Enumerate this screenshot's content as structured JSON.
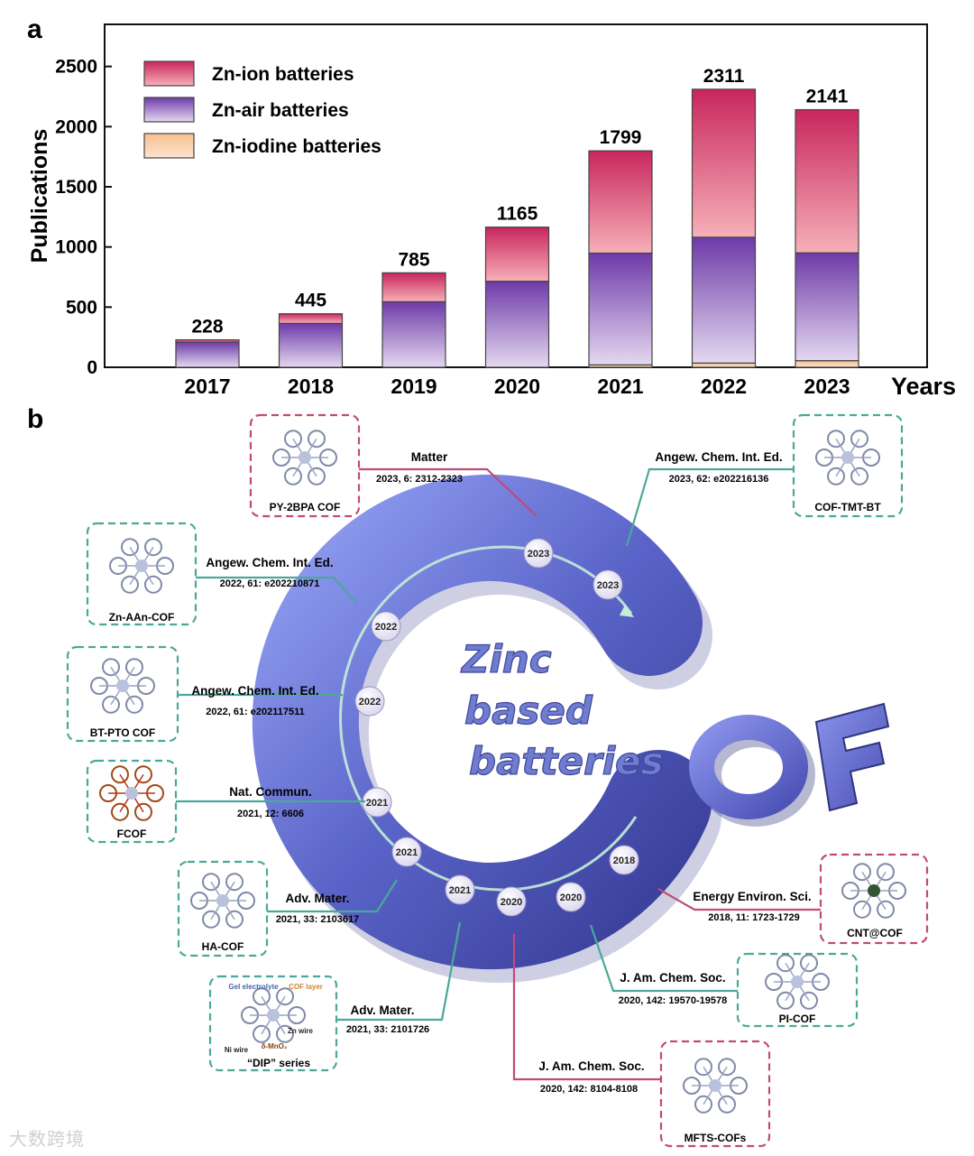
{
  "panel_a": {
    "label": "a",
    "y_axis_title": "Publications",
    "x_axis_title": "Years"
  },
  "chart_data": {
    "type": "bar",
    "stacked": true,
    "categories": [
      "2017",
      "2018",
      "2019",
      "2020",
      "2021",
      "2022",
      "2023"
    ],
    "totals": [
      228,
      445,
      785,
      1165,
      1799,
      2311,
      2141
    ],
    "series": [
      {
        "name": "Zn-ion batteries",
        "values": [
          18,
          80,
          240,
          450,
          850,
          1230,
          1190
        ]
      },
      {
        "name": "Zn-air batteries",
        "values": [
          210,
          365,
          545,
          715,
          929,
          1046,
          896
        ]
      },
      {
        "name": "Zn-iodine batteries",
        "values": [
          0,
          0,
          0,
          0,
          20,
          35,
          55
        ]
      }
    ],
    "ylim": [
      0,
      2850
    ],
    "yticks": [
      0,
      500,
      1000,
      1500,
      2000,
      2500
    ],
    "legend": "top-left",
    "grid": false,
    "colors": {
      "Zn-ion batteries": {
        "top": "#c8265d",
        "bottom": "#f6b0b8"
      },
      "Zn-air batteries": {
        "top": "#6e3aa8",
        "bottom": "#e4d8f0"
      },
      "Zn-iodine batteries": {
        "top": "#f7c08e",
        "bottom": "#fbe3cf"
      }
    }
  },
  "panel_b": {
    "label": "b",
    "center_title_lines": [
      "Zinc",
      "based",
      "batteries"
    ],
    "big_letter": "C",
    "side_text": "OF",
    "ring_years": [
      "2023",
      "2023",
      "2022",
      "2022",
      "2021",
      "2021",
      "2021",
      "2020",
      "2020",
      "2018"
    ],
    "timeline_items": [
      {
        "card": "PY-2BPA COF",
        "journal": "Matter",
        "ref": "2023, 6: 2312-2323",
        "frame": "#c04a7a"
      },
      {
        "card": "COF-TMT-BT",
        "journal": "Angew. Chem. Int. Ed.",
        "ref": "2023, 62: e202216136",
        "frame": "#4aa89a"
      },
      {
        "card": "Zn-AAn-COF",
        "journal": "Angew. Chem. Int. Ed.",
        "ref": "2022, 61: e202210871",
        "frame": "#4aa89a"
      },
      {
        "card": "BT-PTO COF",
        "journal": "Angew. Chem. Int. Ed.",
        "ref": "2022, 61: e202117511",
        "frame": "#4aa89a"
      },
      {
        "card": "FCOF",
        "journal": "Nat. Commun.",
        "ref": "2021, 12: 6606",
        "frame": "#4aa89a"
      },
      {
        "card": "HA-COF",
        "journal": "Adv. Mater.",
        "ref": "2021, 33: 2103617",
        "frame": "#4aa89a"
      },
      {
        "card": "“DIP” series",
        "journal": "Adv. Mater.",
        "ref": "2021, 33: 2101726",
        "frame": "#4aa89a"
      },
      {
        "card": "CNT@COF",
        "journal": "Energy Environ. Sci.",
        "ref": "2018, 11: 1723-1729",
        "frame": "#c04a7a"
      },
      {
        "card": "PI-COF",
        "journal": "J. Am. Chem. Soc.",
        "ref": "2020, 142: 19570-19578",
        "frame": "#4aa89a"
      },
      {
        "card": "MFTS-COFs",
        "journal": "J. Am. Chem. Soc.",
        "ref": "2020, 142: 8104-8108",
        "frame": "#c04a7a"
      }
    ],
    "dip_annotations": [
      "Gel electrolyte",
      "COF layer",
      "Zn wire",
      "Ni wire",
      "δ-MnO₂"
    ]
  },
  "watermark": "大数跨境"
}
